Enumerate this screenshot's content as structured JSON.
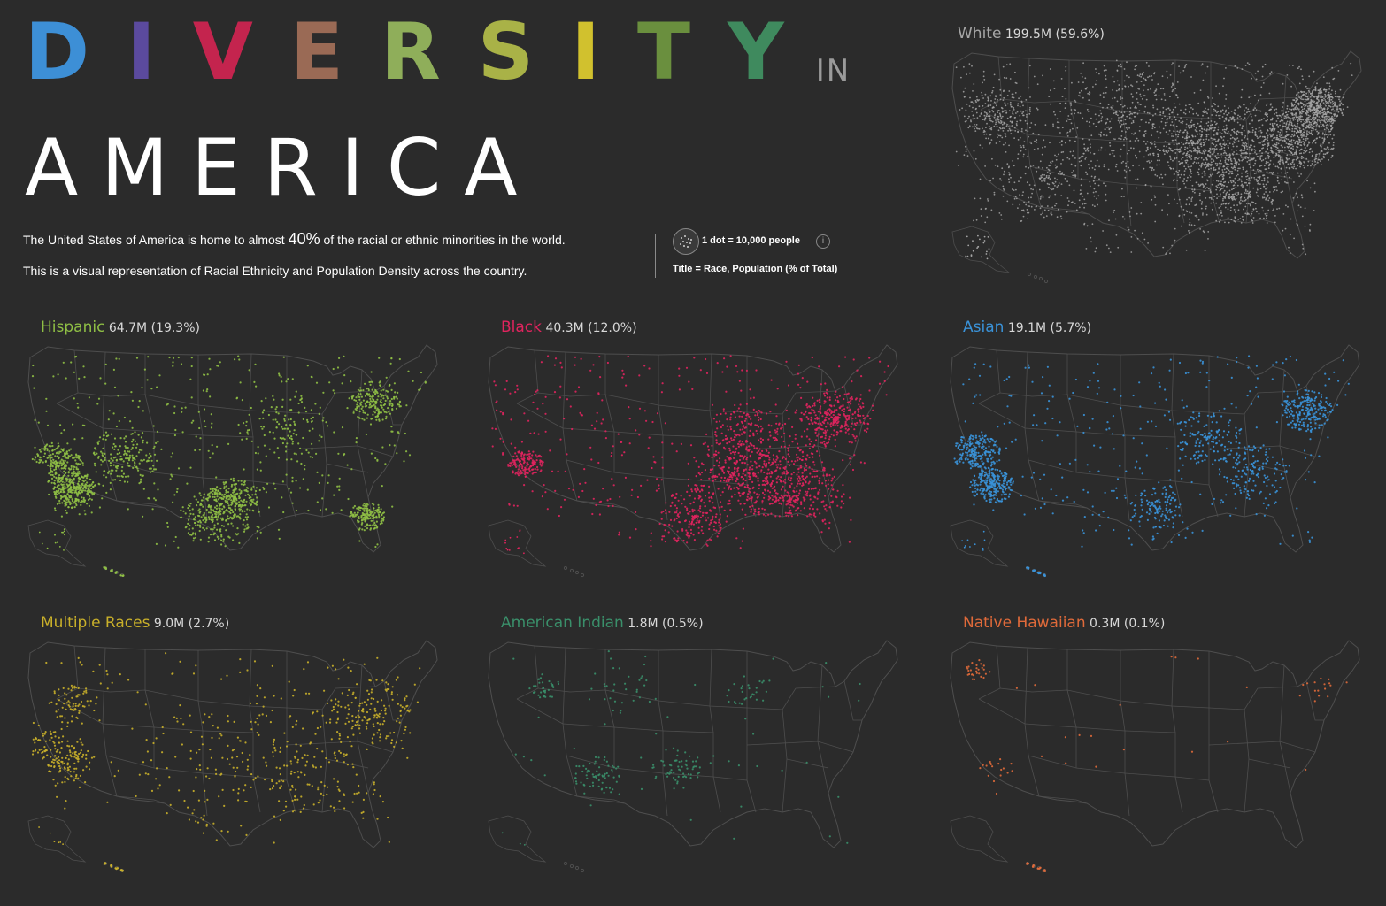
{
  "title": {
    "letters": [
      {
        "ch": "D",
        "color": "#3d8fd6"
      },
      {
        "ch": "I",
        "color": "#5b4a9e"
      },
      {
        "ch": "V",
        "color": "#c4244e"
      },
      {
        "ch": "E",
        "color": "#9a6a55"
      },
      {
        "ch": "R",
        "color": "#8fae5a"
      },
      {
        "ch": "S",
        "color": "#a9b247"
      },
      {
        "ch": "I",
        "color": "#d1c12e"
      },
      {
        "ch": "T",
        "color": "#6a8f3e"
      },
      {
        "ch": "Y",
        "color": "#3f8a5e"
      }
    ],
    "in": "IN",
    "america": "AMERICA"
  },
  "description": {
    "line1_pre": "The United States of America is home to almost ",
    "line1_big": "40%",
    "line1_post": " of the racial or ethnic minorities in the world.",
    "line2": "This is a visual representation of  Racial Ethnicity and Population Density across the country."
  },
  "legend": {
    "dot_scale": "1 dot = 10,000 people",
    "info": "i",
    "title_key": "Title = Race, Population (% of Total)"
  },
  "panels": [
    {
      "id": "white",
      "race": "White",
      "stat": "199.5M (59.6%)",
      "color": "#a6a6a6",
      "density": 1.0,
      "pattern": "white"
    },
    {
      "id": "hispanic",
      "race": "Hispanic",
      "stat": "64.7M (19.3%)",
      "color": "#8fbf45",
      "density": 0.55,
      "pattern": "hispanic"
    },
    {
      "id": "black",
      "race": "Black",
      "stat": "40.3M (12.0%)",
      "color": "#e0245e",
      "density": 0.5,
      "pattern": "black"
    },
    {
      "id": "asian",
      "race": "Asian",
      "stat": "19.1M (5.7%)",
      "color": "#3a92d8",
      "density": 0.38,
      "pattern": "asian"
    },
    {
      "id": "multiple",
      "race": "Multiple Races",
      "stat": "9.0M (2.7%)",
      "color": "#c9b02a",
      "density": 0.22,
      "pattern": "multiple"
    },
    {
      "id": "indian",
      "race": "American Indian",
      "stat": "1.8M (0.5%)",
      "color": "#3a8f6a",
      "density": 0.07,
      "pattern": "indian"
    },
    {
      "id": "hawaiian",
      "race": "Native Hawaiian",
      "stat": "0.3M (0.1%)",
      "color": "#e06a3a",
      "density": 0.02,
      "pattern": "hawaiian"
    }
  ],
  "colors": {
    "background": "#2b2b2b",
    "state_border": "#4e4e4e",
    "white_race_label": "#a6a6a6"
  }
}
